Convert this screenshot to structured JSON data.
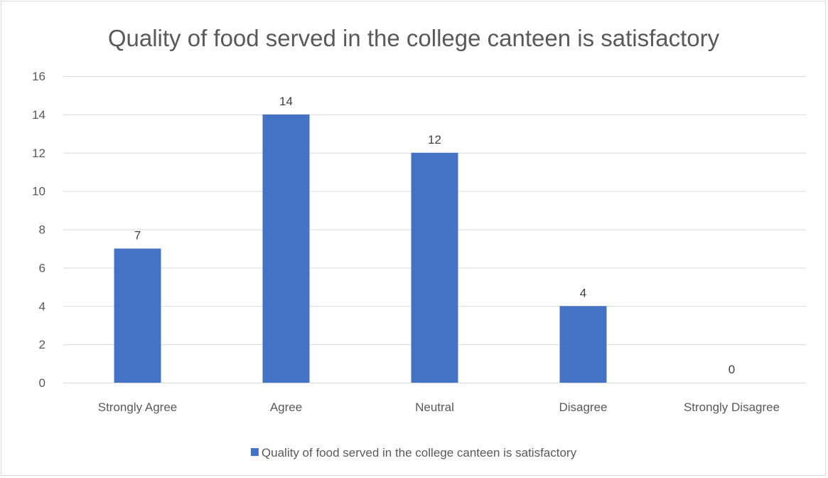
{
  "chart_data": {
    "type": "bar",
    "title": "Quality of food served in the college canteen is satisfactory",
    "categories": [
      "Strongly Agree",
      "Agree",
      "Neutral",
      "Disagree",
      "Strongly Disagree"
    ],
    "series": [
      {
        "name": "Quality of food served in the college canteen is satisfactory",
        "values": [
          7,
          14,
          12,
          4,
          0
        ],
        "color": "#4472c4"
      }
    ],
    "ylim": [
      0,
      16
    ],
    "yticks": [
      0,
      2,
      4,
      6,
      8,
      10,
      12,
      14,
      16
    ],
    "grid": true,
    "legend_position": "bottom",
    "data_labels": true
  }
}
